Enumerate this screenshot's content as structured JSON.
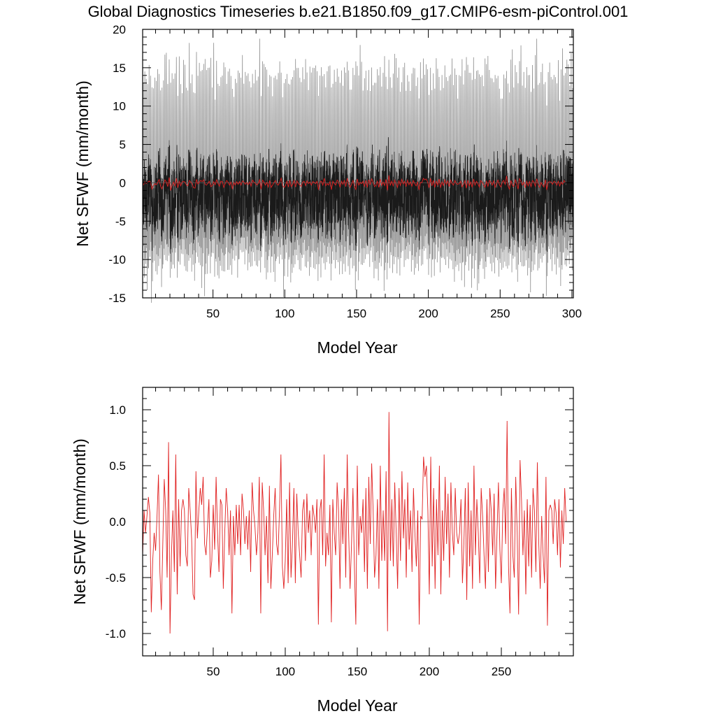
{
  "figure": {
    "title": "Global Diagnostics Timeseries b.e21.B1850.f09_g17.CMIP6-esm-piControl.001"
  },
  "colors": {
    "monthly_light": "#8a8a8a",
    "monthly_dark": "#1a1a1a",
    "annual_mean": "#e02020",
    "zero_line": "#555555",
    "frame": "#000000"
  },
  "chart_data": [
    {
      "type": "line",
      "xlabel": "Model Year",
      "ylabel": "Net SFWF (mm/month)",
      "xlim": [
        1,
        301
      ],
      "ylim": [
        -15,
        20
      ],
      "x_ticks": [
        50,
        100,
        150,
        200,
        250,
        300
      ],
      "x_tick_labels": [
        "50",
        "100",
        "150",
        "200",
        "250",
        "300"
      ],
      "y_ticks": [
        -15,
        -10,
        -5,
        0,
        5,
        10,
        15,
        20
      ],
      "y_tick_labels": [
        "-15",
        "-10",
        "-5",
        "0",
        "5",
        "10",
        "15",
        "20"
      ],
      "reference_line": 0,
      "monthly_envelope": {
        "typical_max": 14.0,
        "typical_min": -10.5,
        "peak_max": 18.0,
        "peak_min": -14.4,
        "dense_band": [
          -6.5,
          3.5
        ]
      },
      "series": [
        {
          "role": "monthly",
          "color_key": "monthly_light"
        },
        {
          "role": "monthly_core",
          "color_key": "monthly_dark"
        },
        {
          "role": "annual_mean",
          "color_key": "annual_mean"
        }
      ]
    },
    {
      "type": "line",
      "xlabel": "Model Year",
      "ylabel": "Net SFWF (mm/month)",
      "xlim": [
        1,
        300
      ],
      "ylim": [
        -1.2,
        1.2
      ],
      "x_ticks": [
        50,
        100,
        150,
        200,
        250
      ],
      "x_tick_labels": [
        "50",
        "100",
        "150",
        "200",
        "250"
      ],
      "y_ticks": [
        -1.0,
        -0.5,
        0.0,
        0.5,
        1.0
      ],
      "y_tick_labels": [
        "-1.0",
        "-0.5",
        "0.0",
        "0.5",
        "1.0"
      ],
      "reference_line": 0,
      "series": [
        {
          "role": "annual_mean",
          "color_key": "annual_mean",
          "x_start": 1,
          "x_step": 1,
          "values": [
            -0.3,
            0.1,
            -0.1,
            0.05,
            0.22,
            0.08,
            -0.81,
            -0.35,
            -0.1,
            -0.26,
            0.05,
            0.42,
            -0.45,
            -0.79,
            -0.2,
            0.38,
            0.1,
            -0.5,
            0.71,
            -1.0,
            -0.3,
            0.1,
            -0.45,
            0.6,
            -0.65,
            0.2,
            -0.4,
            0.1,
            0.2,
            0.1,
            -0.3,
            -0.4,
            0.3,
            0.1,
            -0.15,
            -0.65,
            -0.7,
            0.45,
            -0.15,
            0.1,
            0.3,
            0.15,
            0.4,
            -0.2,
            -0.3,
            -0.05,
            0.2,
            -0.5,
            -0.35,
            0.15,
            -0.25,
            0.4,
            -0.1,
            -0.45,
            0.2,
            0.15,
            -0.6,
            -0.1,
            0.3,
            0.1,
            -0.3,
            0.1,
            -0.82,
            0.05,
            -0.3,
            0.15,
            -0.2,
            0.15,
            -0.3,
            0.25,
            0.1,
            -0.2,
            0.05,
            -0.25,
            0.1,
            -0.45,
            0.35,
            0.1,
            -0.05,
            -0.3,
            -0.1,
            0.4,
            -0.82,
            0.35,
            0.1,
            -0.3,
            0.05,
            -0.55,
            0.32,
            -0.6,
            -0.3,
            0.05,
            0.3,
            -0.2,
            -0.3,
            0.1,
            0.6,
            -0.4,
            -0.6,
            -0.35,
            0.2,
            -0.55,
            0.35,
            -0.5,
            -0.2,
            0.3,
            -0.55,
            0.25,
            -0.1,
            -0.3,
            -0.5,
            0.1,
            0.2,
            -0.35,
            0.25,
            -0.1,
            0.1,
            -0.3,
            0.15,
            0.05,
            -0.1,
            0.2,
            -0.92,
            0.1,
            0.2,
            -0.3,
            0.6,
            -0.4,
            -0.1,
            -0.3,
            0.15,
            -0.9,
            0.2,
            -0.1,
            -0.3,
            0.35,
            0.1,
            -0.6,
            0.2,
            -0.2,
            0.3,
            -0.5,
            0.6,
            -0.1,
            -0.6,
            -0.2,
            0.3,
            -0.4,
            -0.92,
            0.5,
            -0.3,
            0.05,
            -0.1,
            0.2,
            -0.45,
            0.3,
            -0.6,
            0.4,
            -0.2,
            0.52,
            0.1,
            -0.5,
            -0.3,
            0.2,
            -0.6,
            0.5,
            -0.35,
            0.1,
            -0.35,
            0.45,
            -0.98,
            0.98,
            -0.35,
            0.2,
            -0.4,
            0.35,
            -0.1,
            -0.6,
            0.3,
            -0.35,
            0.45,
            -0.15,
            0.2,
            -0.5,
            0.35,
            -0.25,
            0.1,
            -0.45,
            0.3,
            -0.1,
            -0.4,
            0.1,
            -0.92,
            0.05,
            0.02,
            0.58,
            0.4,
            0.5,
            0.1,
            -0.65,
            0.58,
            -0.4,
            0.3,
            -0.6,
            0.2,
            -0.3,
            0.5,
            -0.65,
            0.1,
            -0.35,
            0.4,
            -0.2,
            0.25,
            -0.5,
            0.35,
            -0.1,
            -0.3,
            0.3,
            -0.1,
            -0.2,
            -0.1,
            0.2,
            -0.55,
            -0.2,
            0.3,
            -0.7,
            0.35,
            -0.4,
            0.1,
            -0.6,
            0.5,
            -0.3,
            0.2,
            -0.1,
            -0.55,
            0.3,
            0.05,
            -0.3,
            -0.6,
            0.2,
            -0.45,
            0.3,
            0.1,
            -0.3,
            0.25,
            -0.6,
            -0.1,
            0.35,
            -0.25,
            -0.55,
            0.1,
            0.3,
            -0.2,
            0.9,
            -0.4,
            -0.82,
            0.3,
            -0.3,
            -0.5,
            0.4,
            -0.1,
            -0.83,
            0.55,
            0.2,
            -0.3,
            0.1,
            -0.65,
            0.2,
            -0.4,
            0.15,
            -0.5,
            0.3,
            0.1,
            -0.45,
            0.53,
            -0.2,
            -0.6,
            0.05,
            -0.3,
            -0.55,
            0.4,
            -0.93,
            0.1,
            0.15,
            0.1,
            -0.2,
            0.2,
            0.08,
            -0.3,
            0.2,
            -0.41,
            0.1,
            -0.2,
            0.3,
            0.0
          ]
        }
      ]
    }
  ]
}
